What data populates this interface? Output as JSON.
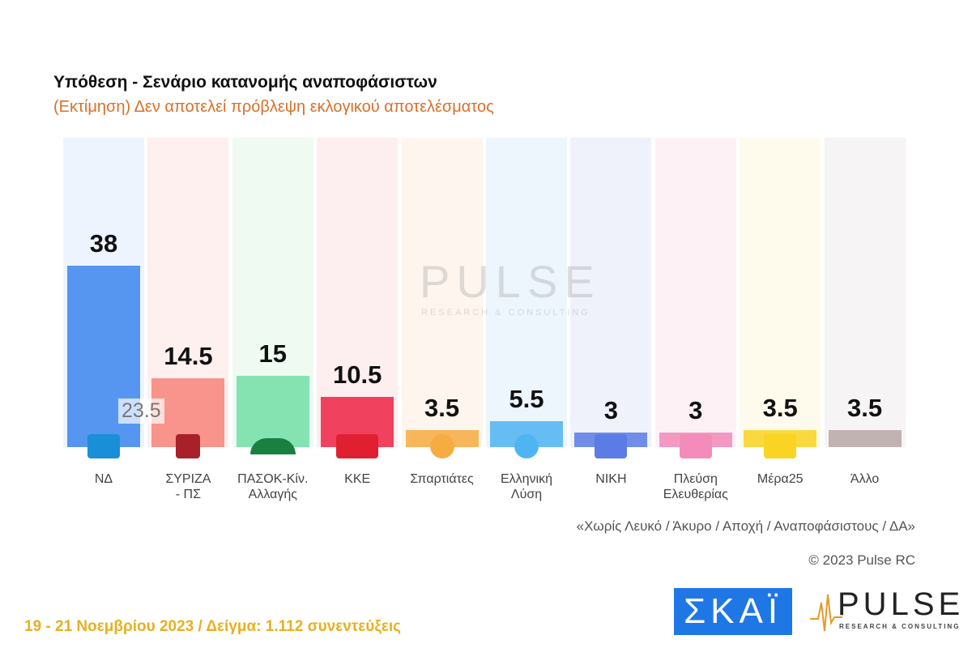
{
  "header": {
    "title": "Υπόθεση - Σενάριο κατανομής αναποφάσιστων",
    "subtitle": "(Εκτίμηση)   Δεν αποτελεί πρόβλεψη εκλογικού αποτελέσματος"
  },
  "chart_data": {
    "type": "bar",
    "categories": [
      "ΝΔ",
      "ΣΥΡΙΖΑ\n- ΠΣ",
      "ΠΑΣΟΚ-Κίν.\nΑλλαγής",
      "ΚΚΕ",
      "Σπαρτιάτες",
      "Ελληνική\nΛύση",
      "ΝΙΚΗ",
      "Πλεύση\nΕλευθερίας",
      "Μέρα25",
      "Άλλο"
    ],
    "values": [
      38,
      14.5,
      15,
      10.5,
      3.5,
      5.5,
      3,
      3,
      3.5,
      3.5
    ],
    "value_labels": [
      "38",
      "14.5",
      "15",
      "10.5",
      "3.5",
      "5.5",
      "3",
      "3",
      "3.5",
      "3.5"
    ],
    "colors": [
      "#3c86ee",
      "#f8847a",
      "#72e0a6",
      "#ee2446",
      "#f7ac42",
      "#4fb4f2",
      "#5b7ce4",
      "#f38cba",
      "#f9d422",
      "#b9a8a8"
    ],
    "tints": [
      "#eef4fd",
      "#fdf0ef",
      "#eefaf2",
      "#fdeef0",
      "#fef6ee",
      "#eef6fd",
      "#eff1fb",
      "#fdf1f6",
      "#fefbec",
      "#f6f4f4"
    ],
    "logos": [
      "nd-logo",
      "syriza-logo",
      "pasok-logo",
      "kke-logo",
      "spartiates-logo",
      "elliniki-lysi-logo",
      "niki-logo",
      "plefsi-logo",
      "mera25-logo",
      ""
    ],
    "ylim": [
      0,
      40
    ],
    "grid": false,
    "annotation": "23.5"
  },
  "watermark": {
    "big": "PULSE",
    "small": "RESEARCH & CONSULTING"
  },
  "note": "«Χωρίς Λευκό / Άκυρο / Αποχή / Αναποφάσιστους / ΔΑ»",
  "copyright": "© 2023 Pulse RC",
  "footer": "19 - 21  Νοεμβρίου  2023  /  Δείγμα:  1.112 συνεντεύξεις",
  "logos": {
    "skai": "ΣΚΑΪ",
    "pulse": "PULSE",
    "pulse_sub": "RESEARCH & CONSULTING"
  }
}
